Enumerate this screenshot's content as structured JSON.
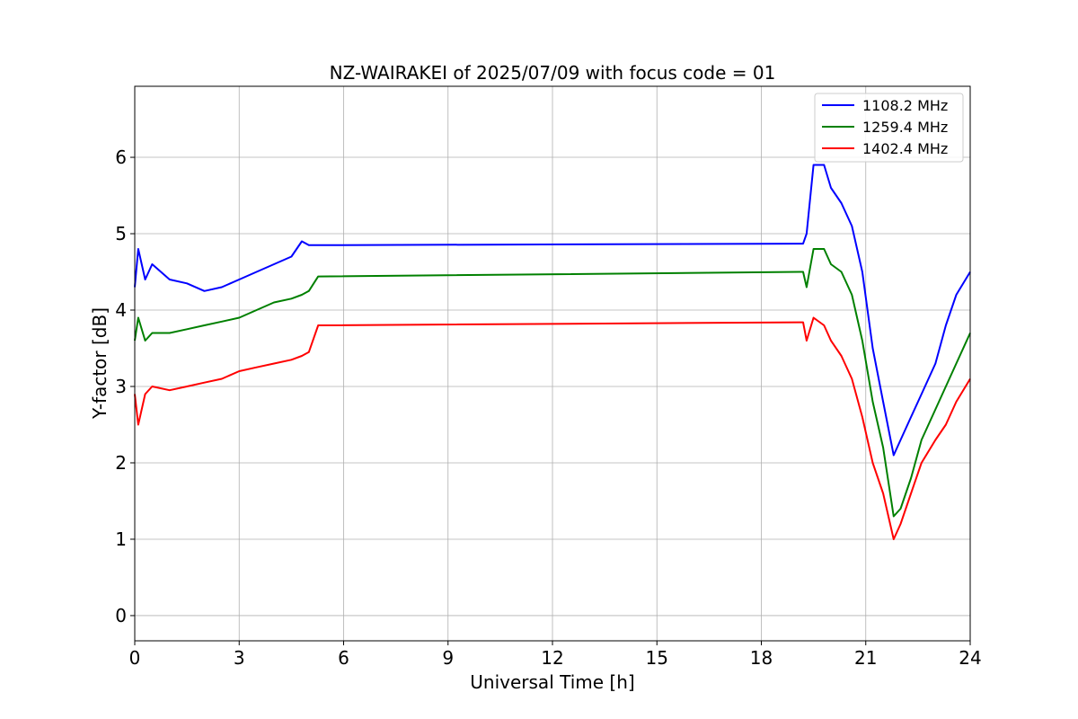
{
  "chart_data": {
    "type": "line",
    "title": "NZ-WAIRAKEI of 2025/07/09 with focus code = 01",
    "xlabel": "Universal Time [h]",
    "ylabel": "Y-factor [dB]",
    "xlim": [
      0,
      24
    ],
    "ylim": [
      -0.33,
      6.93
    ],
    "xticks": [
      0,
      3,
      6,
      9,
      12,
      15,
      18,
      21,
      24
    ],
    "yticks": [
      0,
      1,
      2,
      3,
      4,
      5,
      6
    ],
    "grid": true,
    "legend_position": "top-right",
    "series": [
      {
        "name": "1108.2 MHz",
        "color": "#0000ff",
        "points": [
          [
            0,
            4.3
          ],
          [
            0.1,
            4.8
          ],
          [
            0.3,
            4.4
          ],
          [
            0.5,
            4.6
          ],
          [
            1,
            4.4
          ],
          [
            1.5,
            4.35
          ],
          [
            2,
            4.25
          ],
          [
            2.5,
            4.3
          ],
          [
            3,
            4.4
          ],
          [
            3.5,
            4.5
          ],
          [
            4,
            4.6
          ],
          [
            4.5,
            4.7
          ],
          [
            4.8,
            4.9
          ],
          [
            5,
            4.85
          ],
          [
            5.27,
            4.85
          ],
          [
            19.2,
            4.87
          ],
          [
            19.3,
            5.0
          ],
          [
            19.5,
            5.9
          ],
          [
            19.8,
            5.9
          ],
          [
            20.0,
            5.6
          ],
          [
            20.3,
            5.4
          ],
          [
            20.6,
            5.1
          ],
          [
            20.9,
            4.5
          ],
          [
            21.2,
            3.5
          ],
          [
            21.5,
            2.8
          ],
          [
            21.8,
            2.1
          ],
          [
            22.0,
            2.3
          ],
          [
            22.3,
            2.6
          ],
          [
            22.6,
            2.9
          ],
          [
            23.0,
            3.3
          ],
          [
            23.3,
            3.8
          ],
          [
            23.6,
            4.2
          ],
          [
            24,
            4.5
          ]
        ]
      },
      {
        "name": "1259.4 MHz",
        "color": "#008000",
        "points": [
          [
            0,
            3.6
          ],
          [
            0.1,
            3.9
          ],
          [
            0.3,
            3.6
          ],
          [
            0.5,
            3.7
          ],
          [
            1,
            3.7
          ],
          [
            1.5,
            3.75
          ],
          [
            2,
            3.8
          ],
          [
            2.5,
            3.85
          ],
          [
            3,
            3.9
          ],
          [
            3.5,
            4.0
          ],
          [
            4,
            4.1
          ],
          [
            4.5,
            4.15
          ],
          [
            4.8,
            4.2
          ],
          [
            5,
            4.25
          ],
          [
            5.27,
            4.44
          ],
          [
            19.2,
            4.5
          ],
          [
            19.3,
            4.3
          ],
          [
            19.5,
            4.8
          ],
          [
            19.8,
            4.8
          ],
          [
            20.0,
            4.6
          ],
          [
            20.3,
            4.5
          ],
          [
            20.6,
            4.2
          ],
          [
            20.9,
            3.6
          ],
          [
            21.2,
            2.8
          ],
          [
            21.5,
            2.2
          ],
          [
            21.8,
            1.3
          ],
          [
            22.0,
            1.4
          ],
          [
            22.3,
            1.8
          ],
          [
            22.6,
            2.3
          ],
          [
            23.0,
            2.7
          ],
          [
            23.3,
            3.0
          ],
          [
            23.6,
            3.3
          ],
          [
            24,
            3.7
          ]
        ]
      },
      {
        "name": "1402.4 MHz",
        "color": "#ff0000",
        "points": [
          [
            0,
            2.9
          ],
          [
            0.1,
            2.5
          ],
          [
            0.3,
            2.9
          ],
          [
            0.5,
            3.0
          ],
          [
            1,
            2.95
          ],
          [
            1.5,
            3.0
          ],
          [
            2,
            3.05
          ],
          [
            2.5,
            3.1
          ],
          [
            3,
            3.2
          ],
          [
            3.5,
            3.25
          ],
          [
            4,
            3.3
          ],
          [
            4.5,
            3.35
          ],
          [
            4.8,
            3.4
          ],
          [
            5,
            3.45
          ],
          [
            5.27,
            3.8
          ],
          [
            19.2,
            3.84
          ],
          [
            19.3,
            3.6
          ],
          [
            19.5,
            3.9
          ],
          [
            19.8,
            3.8
          ],
          [
            20.0,
            3.6
          ],
          [
            20.3,
            3.4
          ],
          [
            20.6,
            3.1
          ],
          [
            20.9,
            2.6
          ],
          [
            21.2,
            2.0
          ],
          [
            21.5,
            1.6
          ],
          [
            21.8,
            1.0
          ],
          [
            22.0,
            1.2
          ],
          [
            22.3,
            1.6
          ],
          [
            22.6,
            2.0
          ],
          [
            23.0,
            2.3
          ],
          [
            23.3,
            2.5
          ],
          [
            23.6,
            2.8
          ],
          [
            24,
            3.1
          ]
        ]
      }
    ]
  }
}
